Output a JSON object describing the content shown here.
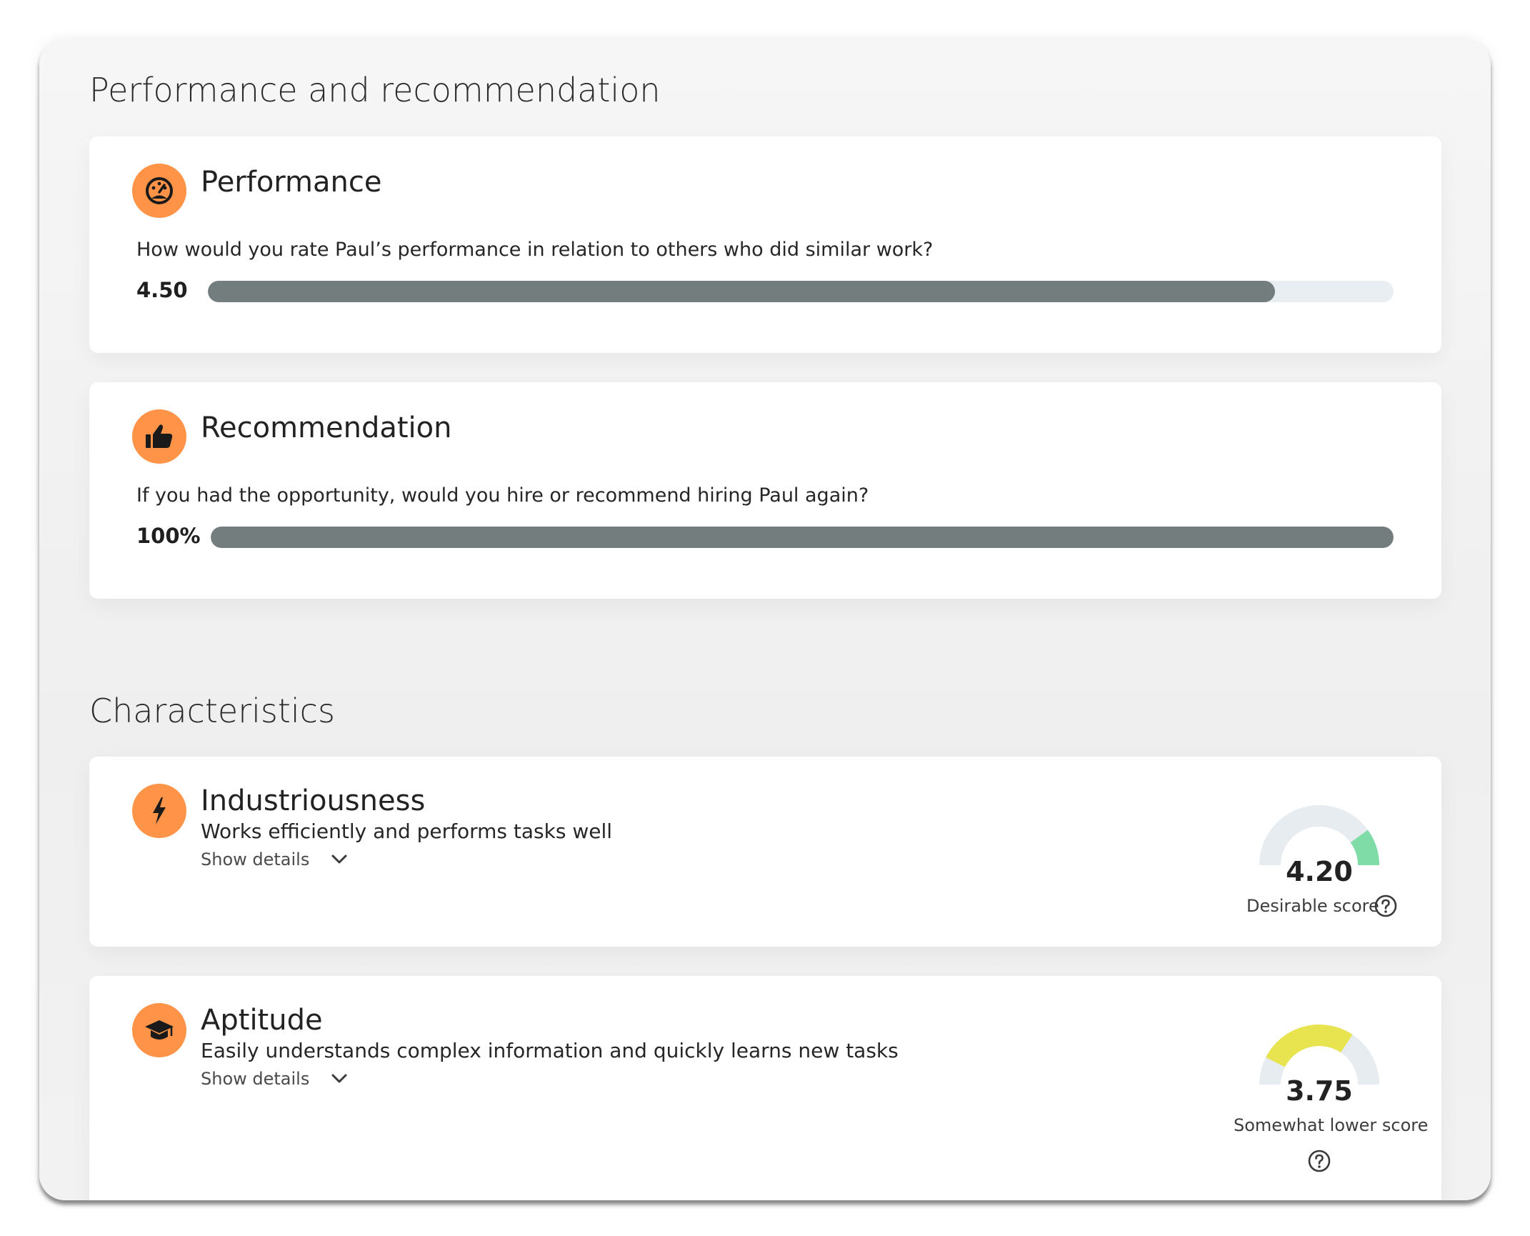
{
  "performance_section": {
    "title": "Performance and recommendation"
  },
  "performance_card": {
    "icon": "speedometer-icon",
    "title": "Performance",
    "question": "How would you rate Paul’s performance in relation to others who did similar work?",
    "value_label": "4.50",
    "value": 4.5,
    "max": 5
  },
  "recommendation_card": {
    "icon": "thumbs-up-icon",
    "title": "Recommendation",
    "question": "If you had the opportunity, would you hire or recommend hiring Paul again?",
    "value_label": "100%",
    "percent": 100
  },
  "characteristics_section": {
    "title": "Characteristics"
  },
  "characteristics": [
    {
      "icon": "lightning-bolt-icon",
      "title": "Industriousness",
      "description": "Works efficiently and performs tasks well",
      "show_details": "Show details",
      "score_label": "4.20",
      "score": 4.2,
      "caption": "Desirable score",
      "gauge_color": "#7fdca6"
    },
    {
      "icon": "graduation-cap-icon",
      "title": "Aptitude",
      "description": "Easily understands complex information and quickly learns new tasks",
      "show_details": "Show details",
      "score_label": "3.75",
      "score": 3.75,
      "caption": "Somewhat lower score",
      "gauge_color": "#e8e44f"
    }
  ],
  "colors": {
    "icon_circle": "#ff9448",
    "bar_fill": "#747d7e",
    "bar_track": "#e8eef1",
    "gauge_track": "#e6ecef"
  }
}
